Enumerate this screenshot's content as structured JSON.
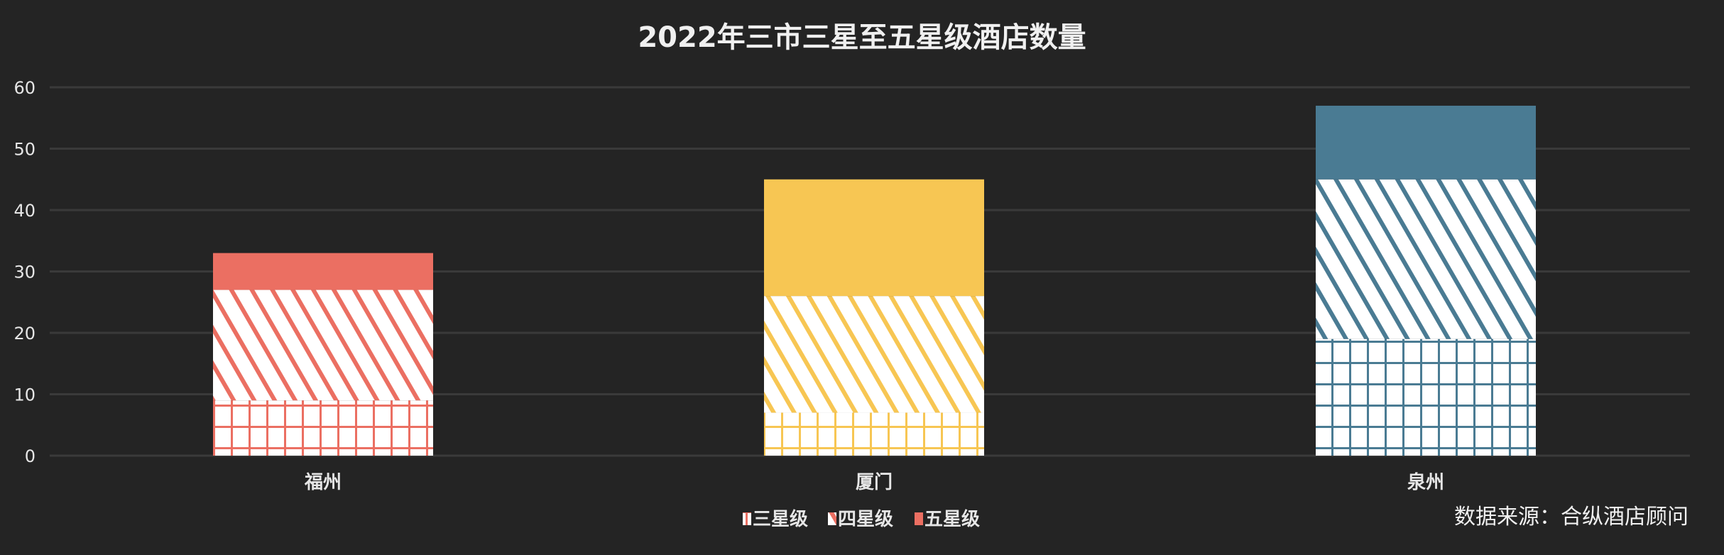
{
  "chart_data": {
    "type": "bar",
    "stacked": true,
    "title": "2022年三市三星至五星级酒店数量",
    "categories": [
      "福州",
      "厦门",
      "泉州"
    ],
    "series": [
      {
        "name": "三星级",
        "pattern": "grid",
        "values": [
          9,
          7,
          19
        ]
      },
      {
        "name": "四星级",
        "pattern": "diagonal",
        "values": [
          18,
          19,
          26
        ]
      },
      {
        "name": "五星级",
        "pattern": "solid",
        "values": [
          6,
          19,
          12
        ]
      }
    ],
    "category_colors": [
      "#EB6F62",
      "#F7C653",
      "#4A7B93"
    ],
    "yticks": [
      0,
      10,
      20,
      30,
      40,
      50,
      60
    ],
    "ylim": [
      0,
      60
    ],
    "grid": true,
    "legend_position": "bottom-center",
    "source": "数据来源：合纵酒店顾问"
  },
  "colors": {
    "background": "#242424",
    "grid": "#3a3a3a",
    "text": "#e6e6e6"
  }
}
